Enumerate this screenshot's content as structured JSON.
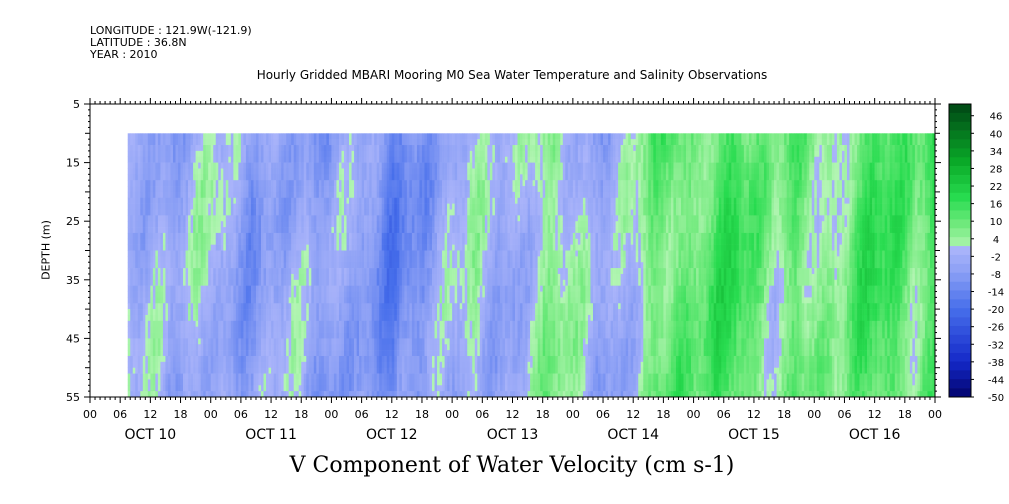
{
  "header": {
    "longitude": "LONGITUDE : 121.9W(-121.9)",
    "latitude": "LATITUDE : 36.8N",
    "year": "YEAR : 2010",
    "title": "Hourly Gridded MBARI Mooring M0 Sea Water Temperature and Salinity Observations"
  },
  "colors": {
    "background": "#ffffff",
    "nodata": "#ffffff"
  },
  "chart_data": {
    "type": "heatmap",
    "title": "Hourly Gridded MBARI Mooring M0 Sea Water Temperature and Salinity Observations",
    "xlabel": "V Component of Water Velocity (cm s-1)",
    "ylabel": "DEPTH (m)",
    "x_range_hours": [
      0,
      168
    ],
    "x_day_labels": [
      "OCT 10",
      "OCT 11",
      "OCT 12",
      "OCT 13",
      "OCT 14",
      "OCT 15",
      "OCT 16"
    ],
    "x_hour_ticks": [
      "00",
      "06",
      "12",
      "18"
    ],
    "y_range": [
      5,
      55
    ],
    "y_reversed": true,
    "y_ticks": [
      5,
      15,
      25,
      35,
      45,
      55
    ],
    "data_depth_range": [
      10,
      55
    ],
    "data_start_hour": 7.5,
    "colorbar": {
      "min": -50,
      "max": 50,
      "step": 3,
      "labels": [
        "46",
        "40",
        "34",
        "28",
        "22",
        "16",
        "10",
        "4",
        "-2",
        "-8",
        "-14",
        "-20",
        "-26",
        "-32",
        "-38",
        "-44",
        "-50"
      ]
    },
    "columns_profile_hours": [
      8,
      12,
      16,
      20,
      24,
      28,
      32,
      36,
      40,
      44,
      48,
      52,
      56,
      60,
      64,
      68,
      72,
      76,
      80,
      84,
      88,
      92,
      96,
      100,
      104,
      108,
      112,
      116,
      120,
      124,
      128,
      132,
      136,
      140,
      144,
      148,
      152,
      156,
      160,
      164,
      168
    ],
    "columns_profile_values": [
      -3,
      -1,
      -6,
      -2,
      1,
      -5,
      -8,
      -4,
      -2,
      -6,
      -7,
      -3,
      -9,
      -14,
      -10,
      -6,
      -2,
      1,
      -3,
      -5,
      3,
      6,
      2,
      -4,
      -5,
      1,
      9,
      12,
      8,
      14,
      16,
      10,
      4,
      11,
      7,
      2,
      12,
      16,
      13,
      8,
      14
    ]
  }
}
